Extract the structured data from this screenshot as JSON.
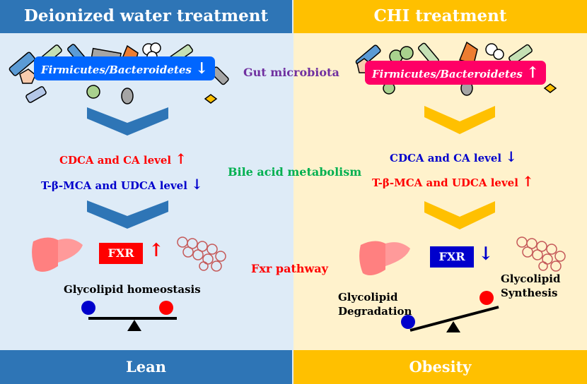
{
  "left": {
    "header": "Deionized water treatment",
    "footer": "Lean",
    "ratio": "Firmicutes/Bacteroidetes",
    "ratio_arrow": "↓",
    "bile1": "CDCA and CA level",
    "bile1_arrow": "↑",
    "bile2": "T-β-MCA and UDCA level",
    "bile2_arrow": "↓",
    "fxr": "FXR",
    "fxr_arrow": "↑",
    "balance": "Glycolipid homeostasis"
  },
  "right": {
    "header": "CHI treatment",
    "footer": "Obesity",
    "ratio": "Firmicutes/Bacteroidetes",
    "ratio_arrow": "↑",
    "bile1": "CDCA and CA level",
    "bile1_arrow": "↓",
    "bile2": "T-β-MCA and UDCA level",
    "bile2_arrow": "↑",
    "fxr": "FXR",
    "fxr_arrow": "↓",
    "degradation": "Glycolipid Degradation",
    "synthesis": "Glycolipid Synthesis"
  },
  "center": {
    "gut": "Gut microbiota",
    "bile": "Bile acid metabolism",
    "fxr": "Fxr pathway"
  },
  "colors": {
    "left_header": "#2e75b6",
    "right_header": "#ffc000",
    "left_bg": "#deebf7",
    "right_bg": "#fff2cc",
    "red": "#ff0000",
    "blue": "#0000cc",
    "gut": "#7030a0",
    "bile": "#00b050"
  }
}
